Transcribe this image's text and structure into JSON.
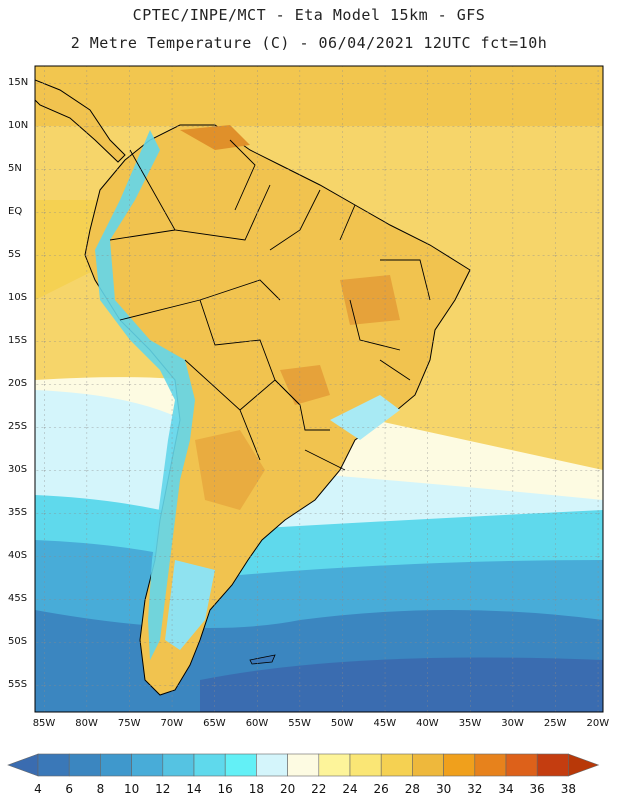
{
  "title": {
    "line1": "CPTEC/INPE/MCT -  Eta Model 15km - GFS",
    "line2": "2 Metre Temperature (C) - 06/04/2021 12UTC fct=10h"
  },
  "lat_labels": [
    "15N",
    "10N",
    "5N",
    "EQ",
    "5S",
    "10S",
    "15S",
    "20S",
    "25S",
    "30S",
    "35S",
    "40S",
    "45S",
    "50S",
    "55S"
  ],
  "lon_labels": [
    "85W",
    "80W",
    "75W",
    "70W",
    "65W",
    "60W",
    "55W",
    "50W",
    "45W",
    "40W",
    "35W",
    "30W",
    "25W",
    "20W"
  ],
  "colorbar": {
    "labels": [
      "4",
      "6",
      "8",
      "10",
      "12",
      "14",
      "16",
      "18",
      "20",
      "22",
      "24",
      "26",
      "28",
      "30",
      "32",
      "34",
      "36",
      "38"
    ],
    "colors": [
      "#3a78b8",
      "#3b86c0",
      "#3f98cc",
      "#48acd8",
      "#55c3e2",
      "#5fd9ec",
      "#63f0f6",
      "#d4f5fb",
      "#fdfbe2",
      "#fdf49a",
      "#fae675",
      "#f5d152",
      "#eeb83c",
      "#f0a01c",
      "#e7821c",
      "#dd611a",
      "#c43d10"
    ],
    "low_color": "#3a6cb0",
    "high_color": "#b83808"
  },
  "legend": {
    "land_warm": "#f1c34f",
    "land_hot": "#e0902a",
    "andes_cold": "#63d6ea"
  }
}
